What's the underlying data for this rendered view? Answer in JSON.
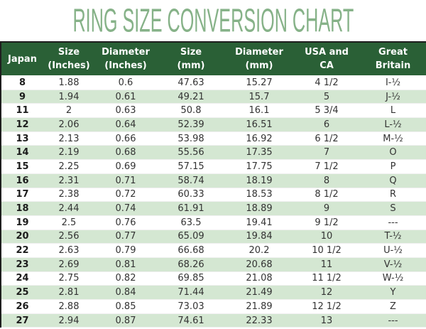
{
  "title": "RING SIZE CONVERSION CHART",
  "colors": {
    "title_green": "#86b288",
    "header_bg": "#2a6036",
    "header_text": "#ffffff",
    "row_alt_bg": "#d4e7d2",
    "row_bg": "#ffffff",
    "body_text": "#333333",
    "outer_border": "#1e1e1e"
  },
  "chart_data": {
    "type": "table",
    "title": "RING SIZE CONVERSION CHART",
    "columns": [
      "Japan",
      "Size (Inches)",
      "Diameter (Inches)",
      "Size (mm)",
      "Diameter (mm)",
      "USA and CA",
      "Great Britain"
    ],
    "header_lines": [
      [
        "Japan",
        ""
      ],
      [
        "Size",
        "(Inches)"
      ],
      [
        "Diameter",
        "(Inches)"
      ],
      [
        "Size",
        "(mm)"
      ],
      [
        "Diameter",
        "(mm)"
      ],
      [
        "USA and",
        "CA"
      ],
      [
        "Great",
        "Britain"
      ]
    ],
    "rows": [
      [
        "8",
        "1.88",
        "0.6",
        "47.63",
        "15.27",
        "4 1/2",
        "I-½"
      ],
      [
        "9",
        "1.94",
        "0.61",
        "49.21",
        "15.7",
        "5",
        "J-½"
      ],
      [
        "11",
        "2",
        "0.63",
        "50.8",
        "16.1",
        "5 3/4",
        "L"
      ],
      [
        "12",
        "2.06",
        "0.64",
        "52.39",
        "16.51",
        "6",
        "L-½"
      ],
      [
        "13",
        "2.13",
        "0.66",
        "53.98",
        "16.92",
        "6 1/2",
        "M-½"
      ],
      [
        "14",
        "2.19",
        "0.68",
        "55.56",
        "17.35",
        "7",
        "O"
      ],
      [
        "15",
        "2.25",
        "0.69",
        "57.15",
        "17.75",
        "7 1/2",
        "P"
      ],
      [
        "16",
        "2.31",
        "0.71",
        "58.74",
        "18.19",
        "8",
        "Q"
      ],
      [
        "17",
        "2.38",
        "0.72",
        "60.33",
        "18.53",
        "8 1/2",
        "R"
      ],
      [
        "18",
        "2.44",
        "0.74",
        "61.91",
        "18.89",
        "9",
        "S"
      ],
      [
        "19",
        "2.5",
        "0.76",
        "63.5",
        "19.41",
        "9 1/2",
        "---"
      ],
      [
        "20",
        "2.56",
        "0.77",
        "65.09",
        "19.84",
        "10",
        "T-½"
      ],
      [
        "22",
        "2.63",
        "0.79",
        "66.68",
        "20.2",
        "10 1/2",
        "U-½"
      ],
      [
        "23",
        "2.69",
        "0.81",
        "68.26",
        "20.68",
        "11",
        "V-½"
      ],
      [
        "24",
        "2.75",
        "0.82",
        "69.85",
        "21.08",
        "11 1/2",
        "W-½"
      ],
      [
        "25",
        "2.81",
        "0.84",
        "71.44",
        "21.49",
        "12",
        "Y"
      ],
      [
        "26",
        "2.88",
        "0.85",
        "73.03",
        "21.89",
        "12 1/2",
        "Z"
      ],
      [
        "27",
        "2.94",
        "0.87",
        "74.61",
        "22.33",
        "13",
        "---"
      ]
    ]
  }
}
